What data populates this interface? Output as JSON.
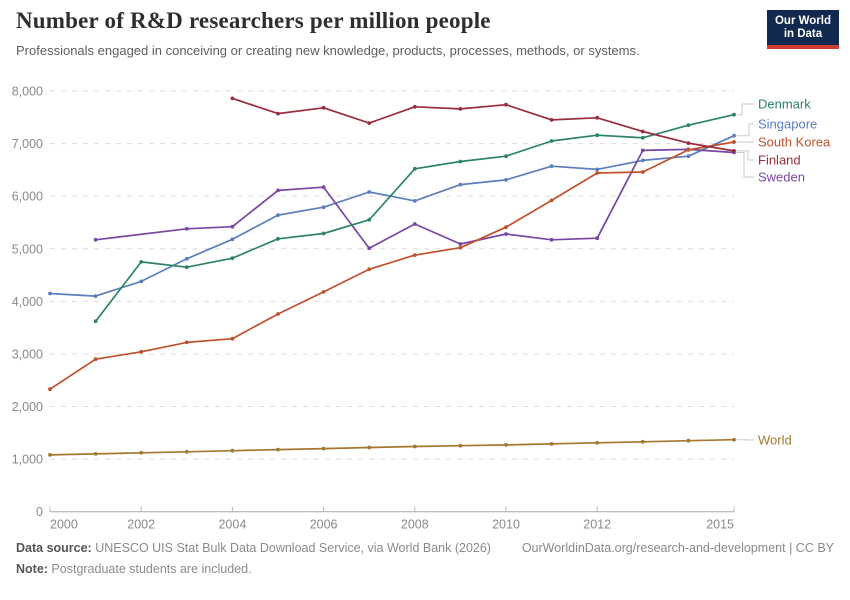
{
  "header": {
    "title": "Number of R&D researchers per million people",
    "subtitle": "Professionals engaged in conceiving or creating new knowledge, products, processes, methods, or systems.",
    "logo_line1": "Our World",
    "logo_line2": "in Data"
  },
  "chart_data": {
    "type": "line",
    "title": "Number of R&D researchers per million people",
    "x": [
      2000,
      2001,
      2002,
      2003,
      2004,
      2005,
      2006,
      2007,
      2008,
      2009,
      2010,
      2011,
      2012,
      2013,
      2014,
      2015
    ],
    "x_tick_labels": [
      "2000",
      "2002",
      "2004",
      "2006",
      "2008",
      "2010",
      "2012",
      "2015"
    ],
    "y_ticks": [
      0,
      1000,
      2000,
      3000,
      4000,
      5000,
      6000,
      7000,
      8000
    ],
    "ylim": [
      0,
      8000
    ],
    "grid": "dashed-horizontal",
    "legend_position": "right",
    "series": [
      {
        "name": "Denmark",
        "color": "#2C8465",
        "values": [
          null,
          3620,
          4750,
          4650,
          4820,
          5190,
          5290,
          5550,
          6520,
          6660,
          6760,
          7050,
          7160,
          7110,
          7350,
          7550
        ]
      },
      {
        "name": "Singapore",
        "color": "#5B7EBC",
        "values": [
          4150,
          4100,
          4380,
          4810,
          5180,
          5640,
          5790,
          6080,
          5910,
          6220,
          6310,
          6570,
          6510,
          6680,
          6760,
          7150
        ]
      },
      {
        "name": "South Korea",
        "color": "#C0512D",
        "values": [
          2330,
          2900,
          3040,
          3220,
          3290,
          3760,
          4180,
          4610,
          4880,
          5020,
          5410,
          5920,
          6440,
          6460,
          6880,
          7030
        ]
      },
      {
        "name": "Finland",
        "color": "#992D3D",
        "values": [
          null,
          null,
          null,
          null,
          7860,
          7570,
          7680,
          7390,
          7700,
          7660,
          7740,
          7450,
          7490,
          7230,
          7010,
          6860
        ]
      },
      {
        "name": "Sweden",
        "color": "#7A46A5",
        "values": [
          null,
          5170,
          null,
          5380,
          5420,
          6110,
          6170,
          5010,
          5470,
          5090,
          5280,
          5170,
          5200,
          6870,
          6890,
          6830
        ]
      },
      {
        "name": "World",
        "color": "#A5782F",
        "values": [
          1080,
          1100,
          1120,
          1140,
          1160,
          1180,
          1200,
          1220,
          1240,
          1255,
          1270,
          1290,
          1310,
          1330,
          1350,
          1370
        ]
      }
    ]
  },
  "footer": {
    "source_label": "Data source:",
    "source_text": " UNESCO UIS Stat Bulk Data Download Service, via World Bank (2026)",
    "link_text": "OurWorldinData.org/research-and-development | CC BY",
    "note_label": "Note:",
    "note_text": " Postgraduate students are included."
  }
}
